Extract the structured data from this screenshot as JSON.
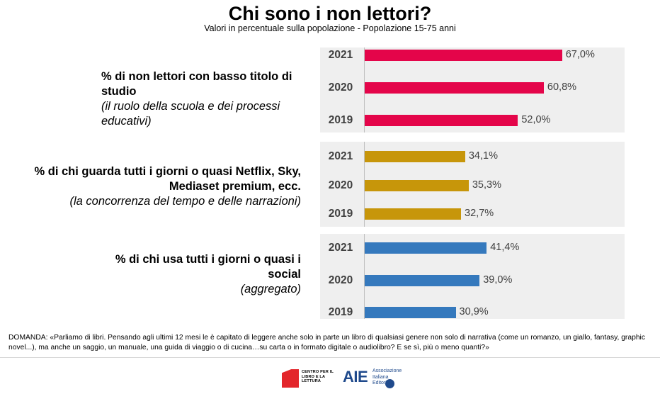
{
  "title": "Chi sono i non lettori?",
  "subtitle": "Valori in percentuale sulla popolazione - Popolazione 15-75 anni",
  "chart_data": {
    "type": "bar",
    "orientation": "horizontal",
    "value_suffix": "%",
    "xlim": [
      0,
      100
    ],
    "groups": [
      {
        "label": "% di non lettori con basso titolo di studio",
        "sublabel": "(il ruolo della scuola e dei processi educativi)",
        "color": "#e4054a",
        "categories": [
          "2021",
          "2020",
          "2019"
        ],
        "values": [
          67.0,
          60.8,
          52.0
        ],
        "value_labels": [
          "67,0%",
          "60,8%",
          "52,0%"
        ]
      },
      {
        "label": "% di chi guarda tutti i giorni o quasi Netflix, Sky, Mediaset premium, ecc.",
        "sublabel": "(la concorrenza del tempo e delle narrazioni)",
        "color": "#c7960a",
        "categories": [
          "2021",
          "2020",
          "2019"
        ],
        "values": [
          34.1,
          35.3,
          32.7
        ],
        "value_labels": [
          "34,1%",
          "35,3%",
          "32,7%"
        ]
      },
      {
        "label": "% di chi usa tutti i giorni o quasi i social",
        "sublabel": "(aggregato)",
        "color": "#3579bd",
        "categories": [
          "2021",
          "2020",
          "2019"
        ],
        "values": [
          41.4,
          39.0,
          30.9
        ],
        "value_labels": [
          "41,4%",
          "39,0%",
          "30,9%"
        ]
      }
    ]
  },
  "footnote": "DOMANDA: «Parliamo di libri. Pensando agli ultimi 12 mesi le è capitato di leggere anche solo in parte un libro di qualsiasi genere non solo di narrativa (come un romanzo, un giallo, fantasy, graphic novel...),  ma anche un saggio, un manuale, una guida di viaggio o di cucina…su carta o in formato digitale o audiolibro? E se sì, più o meno quanti?»",
  "logos": {
    "cepell": "CENTRO PER IL LIBRO E LA LETTURA",
    "aie": "AIE",
    "aie_sub": "Associazione Italiana Editori"
  }
}
